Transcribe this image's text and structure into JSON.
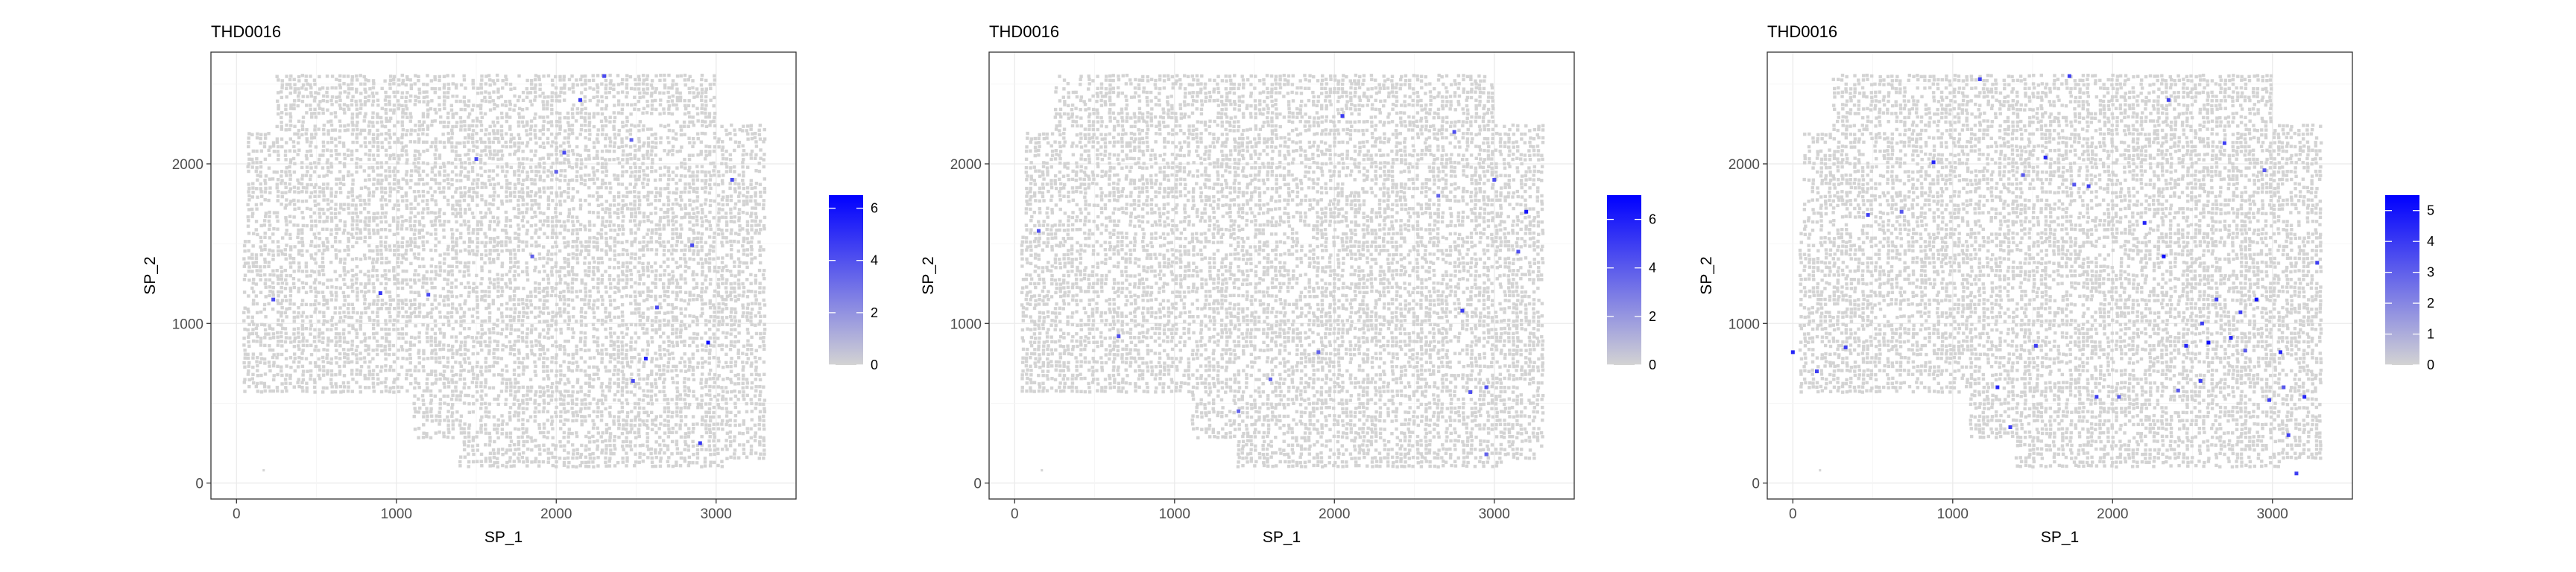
{
  "figure": {
    "background": "#ffffff",
    "panel_border": "#333333",
    "grid_color": "#ebebeb",
    "spot_color": "#d3d3d3"
  },
  "chart_data": [
    {
      "type": "scatter",
      "title": "THD0016",
      "xlabel": "SP_1",
      "ylabel": "SP_2",
      "xlim": [
        -160,
        3500
      ],
      "ylim": [
        -100,
        2700
      ],
      "xticks": [
        0,
        1000,
        2000,
        3000
      ],
      "yticks": [
        0,
        1000,
        2000
      ],
      "grid": true,
      "legend": {
        "position": "right",
        "ticks": [
          0,
          2,
          4,
          6
        ],
        "max": 6.5,
        "low_color": "#d3d3d3",
        "high_color": "#0000ff"
      },
      "background_spots": "dense grey tissue spots covering most of the section",
      "points": [
        {
          "x": 230,
          "y": 1150,
          "v": 3
        },
        {
          "x": 900,
          "y": 1190,
          "v": 4
        },
        {
          "x": 1200,
          "y": 1180,
          "v": 3
        },
        {
          "x": 1500,
          "y": 2030,
          "v": 3
        },
        {
          "x": 1850,
          "y": 1420,
          "v": 2
        },
        {
          "x": 2050,
          "y": 2070,
          "v": 3
        },
        {
          "x": 2150,
          "y": 2400,
          "v": 4
        },
        {
          "x": 2300,
          "y": 2550,
          "v": 3
        },
        {
          "x": 2470,
          "y": 2150,
          "v": 2
        },
        {
          "x": 2560,
          "y": 780,
          "v": 5
        },
        {
          "x": 2630,
          "y": 1100,
          "v": 3
        },
        {
          "x": 2850,
          "y": 1490,
          "v": 3
        },
        {
          "x": 2950,
          "y": 880,
          "v": 6
        },
        {
          "x": 3100,
          "y": 1900,
          "v": 3
        },
        {
          "x": 2900,
          "y": 250,
          "v": 4
        },
        {
          "x": 2000,
          "y": 1950,
          "v": 2
        },
        {
          "x": 2480,
          "y": 640,
          "v": 3
        }
      ]
    },
    {
      "type": "scatter",
      "title": "THD0016",
      "xlabel": "SP_1",
      "ylabel": "SP_2",
      "xlim": [
        -160,
        3500
      ],
      "ylim": [
        -100,
        2700
      ],
      "xticks": [
        0,
        1000,
        2000,
        3000
      ],
      "yticks": [
        0,
        1000,
        2000
      ],
      "grid": true,
      "legend": {
        "position": "right",
        "ticks": [
          0,
          2,
          4,
          6
        ],
        "max": 7,
        "low_color": "#d3d3d3",
        "high_color": "#0000ff"
      },
      "background_spots": "dense grey tissue spots covering most of the section",
      "points": [
        {
          "x": 150,
          "y": 1580,
          "v": 3
        },
        {
          "x": 650,
          "y": 920,
          "v": 3
        },
        {
          "x": 1600,
          "y": 650,
          "v": 2
        },
        {
          "x": 2050,
          "y": 2300,
          "v": 4
        },
        {
          "x": 2750,
          "y": 2200,
          "v": 3
        },
        {
          "x": 3000,
          "y": 1900,
          "v": 3
        },
        {
          "x": 3200,
          "y": 1700,
          "v": 6
        },
        {
          "x": 2800,
          "y": 1080,
          "v": 4
        },
        {
          "x": 2850,
          "y": 570,
          "v": 3
        },
        {
          "x": 3150,
          "y": 1450,
          "v": 3
        },
        {
          "x": 2950,
          "y": 180,
          "v": 2
        },
        {
          "x": 1900,
          "y": 820,
          "v": 2
        },
        {
          "x": 2650,
          "y": 1800,
          "v": 2
        },
        {
          "x": 1400,
          "y": 450,
          "v": 2
        },
        {
          "x": 2950,
          "y": 600,
          "v": 3
        }
      ]
    },
    {
      "type": "scatter",
      "title": "THD0016",
      "xlabel": "SP_1",
      "ylabel": "SP_2",
      "xlim": [
        -160,
        3500
      ],
      "ylim": [
        -100,
        2700
      ],
      "xticks": [
        0,
        1000,
        2000,
        3000
      ],
      "yticks": [
        0,
        1000,
        2000
      ],
      "grid": true,
      "legend": {
        "position": "right",
        "ticks": [
          0,
          1,
          2,
          3,
          4,
          5
        ],
        "max": 5.5,
        "low_color": "#d3d3d3",
        "high_color": "#0000ff"
      },
      "background_spots": "dense grey tissue spots covering most of the section",
      "points": [
        {
          "x": 0,
          "y": 820,
          "v": 4
        },
        {
          "x": 150,
          "y": 700,
          "v": 3
        },
        {
          "x": 330,
          "y": 850,
          "v": 3
        },
        {
          "x": 470,
          "y": 1680,
          "v": 3
        },
        {
          "x": 680,
          "y": 1700,
          "v": 2
        },
        {
          "x": 880,
          "y": 2010,
          "v": 4
        },
        {
          "x": 1170,
          "y": 2530,
          "v": 3
        },
        {
          "x": 1280,
          "y": 600,
          "v": 4
        },
        {
          "x": 1360,
          "y": 350,
          "v": 3
        },
        {
          "x": 1440,
          "y": 1930,
          "v": 2
        },
        {
          "x": 1520,
          "y": 860,
          "v": 3
        },
        {
          "x": 1580,
          "y": 2040,
          "v": 4
        },
        {
          "x": 1730,
          "y": 2550,
          "v": 3
        },
        {
          "x": 1760,
          "y": 1870,
          "v": 2
        },
        {
          "x": 1850,
          "y": 1860,
          "v": 3
        },
        {
          "x": 1900,
          "y": 540,
          "v": 3
        },
        {
          "x": 2040,
          "y": 540,
          "v": 2
        },
        {
          "x": 2200,
          "y": 1630,
          "v": 4
        },
        {
          "x": 2320,
          "y": 1420,
          "v": 5
        },
        {
          "x": 2350,
          "y": 2400,
          "v": 3
        },
        {
          "x": 2460,
          "y": 860,
          "v": 4
        },
        {
          "x": 2560,
          "y": 1000,
          "v": 3
        },
        {
          "x": 2600,
          "y": 880,
          "v": 5
        },
        {
          "x": 2650,
          "y": 1150,
          "v": 3
        },
        {
          "x": 2700,
          "y": 2130,
          "v": 3
        },
        {
          "x": 2740,
          "y": 910,
          "v": 4
        },
        {
          "x": 2800,
          "y": 1070,
          "v": 3
        },
        {
          "x": 2830,
          "y": 830,
          "v": 2
        },
        {
          "x": 2900,
          "y": 1150,
          "v": 5
        },
        {
          "x": 2950,
          "y": 1960,
          "v": 2
        },
        {
          "x": 2980,
          "y": 520,
          "v": 3
        },
        {
          "x": 3050,
          "y": 820,
          "v": 4
        },
        {
          "x": 3070,
          "y": 600,
          "v": 2
        },
        {
          "x": 3100,
          "y": 300,
          "v": 3
        },
        {
          "x": 3150,
          "y": 60,
          "v": 3
        },
        {
          "x": 3200,
          "y": 540,
          "v": 4
        },
        {
          "x": 3280,
          "y": 1380,
          "v": 3
        },
        {
          "x": 2410,
          "y": 580,
          "v": 2
        },
        {
          "x": 2550,
          "y": 640,
          "v": 3
        }
      ]
    }
  ]
}
